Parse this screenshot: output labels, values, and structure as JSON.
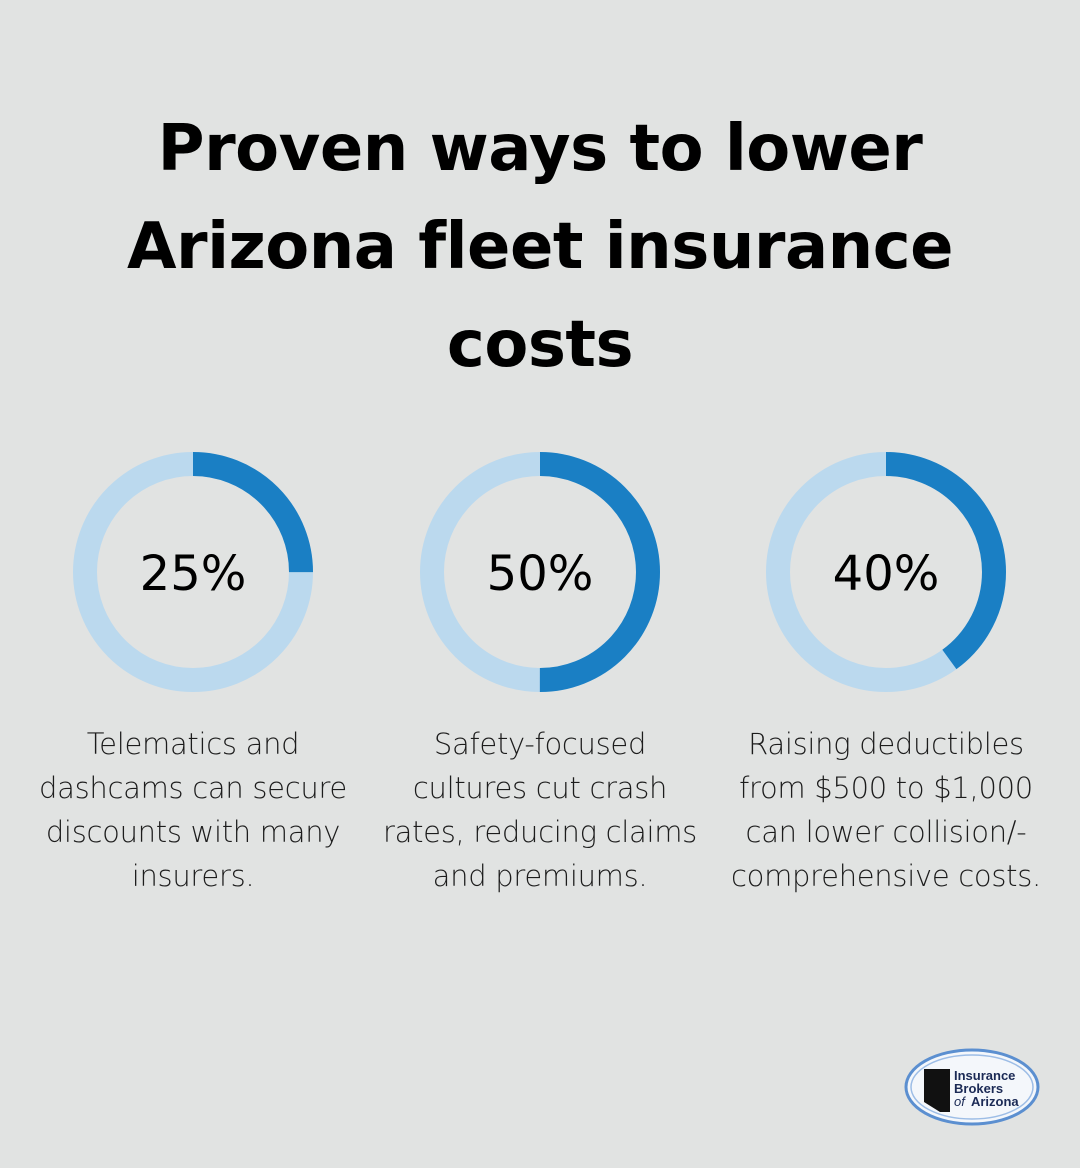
{
  "title": "Proven ways to lower Arizona fleet insurance costs",
  "chart_data": {
    "type": "donut",
    "title": "Proven ways to lower Arizona fleet insurance costs",
    "items": [
      {
        "value": 25,
        "label": "25%",
        "description": "Telematics and dashcams can secure discounts with many insurers."
      },
      {
        "value": 50,
        "label": "50%",
        "description": "Safety-focused cultures cut crash rates, reducing claims and premiums."
      },
      {
        "value": 40,
        "label": "40%",
        "description": "Raising deductibles from $500 to $1,000 can lower collision/-comprehensive costs."
      }
    ],
    "max": 100,
    "colors": {
      "filled": "#1a7fc4",
      "track": "#bbd9ee",
      "background": "#e1e3e2"
    }
  },
  "logo": {
    "line1": "Insurance",
    "line2": "Brokers",
    "line3_prefix": "of",
    "line3": "Arizona"
  }
}
